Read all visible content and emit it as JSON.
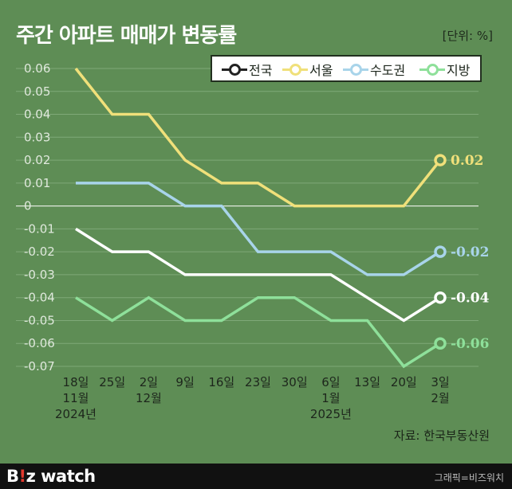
{
  "header": {
    "title": "주간 아파트 매매가 변동률",
    "unit": "[단위: %]"
  },
  "chart_data": {
    "type": "line",
    "title": "주간 아파트 매매가 변동률",
    "ylim": [
      -0.07,
      0.06
    ],
    "y_ticks": [
      "0.06",
      "0.05",
      "0.04",
      "0.03",
      "0.02",
      "0.01",
      "0",
      "-0.01",
      "-0.02",
      "-0.03",
      "-0.04",
      "-0.05",
      "-0.06",
      "-0.07"
    ],
    "x_tick_labels": [
      [
        "18일",
        "11월",
        "2024년"
      ],
      [
        "25일"
      ],
      [
        "2일",
        "12월"
      ],
      [
        "9일"
      ],
      [
        "16일"
      ],
      [
        "23일"
      ],
      [
        "30일"
      ],
      [
        "6일",
        "1월",
        "2025년"
      ],
      [
        "13일"
      ],
      [
        "20일"
      ],
      [
        "3일",
        "2월"
      ]
    ],
    "grid": "horizontal",
    "legend_position": "top-right",
    "series": [
      {
        "name": "전국",
        "color": "#ffffff",
        "values": [
          -0.01,
          -0.02,
          -0.02,
          -0.03,
          -0.03,
          -0.03,
          -0.03,
          -0.03,
          -0.04,
          -0.05,
          -0.04
        ],
        "end_label": "-0.04"
      },
      {
        "name": "서울",
        "color": "#f0e07a",
        "values": [
          0.06,
          0.04,
          0.04,
          0.02,
          0.01,
          0.01,
          0.0,
          0.0,
          0.0,
          0.0,
          0.02
        ],
        "end_label": "0.02"
      },
      {
        "name": "수도권",
        "color": "#a8d4ea",
        "values": [
          0.01,
          0.01,
          0.01,
          0.0,
          0.0,
          -0.02,
          -0.02,
          -0.02,
          -0.03,
          -0.03,
          -0.02
        ],
        "end_label": "-0.02"
      },
      {
        "name": "지방",
        "color": "#8ee09a",
        "values": [
          -0.04,
          -0.05,
          -0.04,
          -0.05,
          -0.05,
          -0.04,
          -0.04,
          -0.05,
          -0.05,
          -0.07,
          -0.06
        ],
        "end_label": "-0.06"
      }
    ]
  },
  "source": "자료: 한국부동산원",
  "footer": {
    "brand_b": "B",
    "brand_bang": "!",
    "brand_rest": "z watch",
    "credit": "그래픽=비즈워치"
  }
}
